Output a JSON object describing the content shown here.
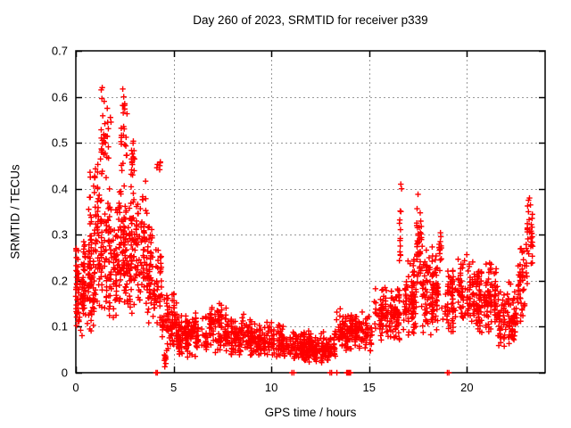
{
  "chart_data": {
    "type": "scatter",
    "title": "Day 260 of 2023, SRMTID for receiver p339",
    "xlabel": "GPS time / hours",
    "ylabel": "SRMTID / TECUs",
    "xlim": [
      0,
      24
    ],
    "ylim": [
      0,
      0.7
    ],
    "xticks": {
      "values": [
        0,
        5,
        10,
        15,
        20
      ],
      "labels": [
        "0",
        "5",
        "10",
        "15",
        "20"
      ]
    },
    "yticks": {
      "values": [
        0,
        0.1,
        0.2,
        0.3,
        0.4,
        0.5,
        0.6,
        0.7
      ],
      "labels": [
        "0",
        "0.1",
        "0.2",
        "0.3",
        "0.4",
        "0.5",
        "0.6",
        "0.7"
      ]
    },
    "grid": true,
    "grid_style": "dashed",
    "grid_color": "#999999",
    "legend_position": "none",
    "marker": {
      "shape": "plus",
      "color": "#ff0000",
      "size": 7
    },
    "border_color": "#000000",
    "background": "#ffffff",
    "point_clusters": [
      {
        "x0": 0.0,
        "x1": 0.12,
        "n": 30,
        "y0": 0.08,
        "y1": 0.3,
        "mode": 0.5
      },
      {
        "x0": 0.1,
        "x1": 1.0,
        "n": 110,
        "y0": 0.075,
        "y1": 0.3,
        "mode": 0.4
      },
      {
        "x0": 0.6,
        "x1": 1.3,
        "n": 50,
        "y0": 0.1,
        "y1": 0.4,
        "mode": 0.45
      },
      {
        "x0": 0.7,
        "x1": 1.3,
        "n": 35,
        "y0": 0.25,
        "y1": 0.48,
        "mode": 0.4
      },
      {
        "x0": 1.25,
        "x1": 1.55,
        "n": 22,
        "y0": 0.33,
        "y1": 0.62,
        "mode": 0.5
      },
      {
        "x0": 1.3,
        "x1": 2.3,
        "n": 130,
        "y0": 0.1,
        "y1": 0.42,
        "mode": 0.45
      },
      {
        "x0": 1.6,
        "x1": 1.8,
        "n": 10,
        "y0": 0.45,
        "y1": 0.6,
        "mode": 0.5
      },
      {
        "x0": 2.3,
        "x1": 2.6,
        "n": 22,
        "y0": 0.4,
        "y1": 0.62,
        "mode": 0.45
      },
      {
        "x0": 2.2,
        "x1": 3.2,
        "n": 150,
        "y0": 0.12,
        "y1": 0.42,
        "mode": 0.55
      },
      {
        "x0": 2.8,
        "x1": 3.05,
        "n": 16,
        "y0": 0.4,
        "y1": 0.52,
        "mode": 0.4
      },
      {
        "x0": 3.2,
        "x1": 4.0,
        "n": 90,
        "y0": 0.1,
        "y1": 0.35,
        "mode": 0.45
      },
      {
        "x0": 3.3,
        "x1": 3.65,
        "n": 10,
        "y0": 0.3,
        "y1": 0.46,
        "mode": 0.5
      },
      {
        "x0": 4.0,
        "x1": 4.4,
        "n": 40,
        "y0": 0.08,
        "y1": 0.3,
        "mode": 0.35
      },
      {
        "x0": 4.15,
        "x1": 4.35,
        "n": 6,
        "y0": 0.43,
        "y1": 0.47,
        "mode": 0.5
      },
      {
        "x0": 4.4,
        "x1": 5.2,
        "n": 90,
        "y0": 0.05,
        "y1": 0.18,
        "mode": 0.4
      },
      {
        "x0": 4.45,
        "x1": 4.75,
        "n": 8,
        "y0": 0.015,
        "y1": 0.06,
        "mode": 0.5
      },
      {
        "x0": 5.2,
        "x1": 9.0,
        "n": 330,
        "y0": 0.03,
        "y1": 0.135,
        "mode": 0.45
      },
      {
        "x0": 6.8,
        "x1": 7.7,
        "n": 40,
        "y0": 0.09,
        "y1": 0.155,
        "mode": 0.4
      },
      {
        "x0": 9.0,
        "x1": 10.6,
        "n": 140,
        "y0": 0.03,
        "y1": 0.12,
        "mode": 0.4
      },
      {
        "x0": 10.6,
        "x1": 13.3,
        "n": 230,
        "y0": 0.02,
        "y1": 0.095,
        "mode": 0.45
      },
      {
        "x0": 12.0,
        "x1": 13.0,
        "n": 40,
        "y0": 0.025,
        "y1": 0.07,
        "mode": 0.5
      },
      {
        "x0": 13.3,
        "x1": 15.2,
        "n": 170,
        "y0": 0.045,
        "y1": 0.14,
        "mode": 0.5
      },
      {
        "x0": 15.2,
        "x1": 16.55,
        "n": 130,
        "y0": 0.06,
        "y1": 0.19,
        "mode": 0.5
      },
      {
        "x0": 16.55,
        "x1": 16.75,
        "n": 12,
        "y0": 0.2,
        "y1": 0.41,
        "mode": 0.35
      },
      {
        "x0": 16.75,
        "x1": 17.4,
        "n": 90,
        "y0": 0.08,
        "y1": 0.25,
        "mode": 0.45
      },
      {
        "x0": 17.4,
        "x1": 17.7,
        "n": 40,
        "y0": 0.15,
        "y1": 0.39,
        "mode": 0.45
      },
      {
        "x0": 17.7,
        "x1": 18.4,
        "n": 90,
        "y0": 0.08,
        "y1": 0.3,
        "mode": 0.4
      },
      {
        "x0": 18.55,
        "x1": 18.75,
        "n": 14,
        "y0": 0.22,
        "y1": 0.32,
        "mode": 0.5
      },
      {
        "x0": 18.4,
        "x1": 19.5,
        "n": 90,
        "y0": 0.08,
        "y1": 0.26,
        "mode": 0.4
      },
      {
        "x0": 19.5,
        "x1": 20.4,
        "n": 90,
        "y0": 0.09,
        "y1": 0.27,
        "mode": 0.4
      },
      {
        "x0": 20.4,
        "x1": 21.6,
        "n": 140,
        "y0": 0.08,
        "y1": 0.25,
        "mode": 0.4
      },
      {
        "x0": 21.6,
        "x1": 22.6,
        "n": 110,
        "y0": 0.05,
        "y1": 0.2,
        "mode": 0.45
      },
      {
        "x0": 22.6,
        "x1": 23.1,
        "n": 50,
        "y0": 0.1,
        "y1": 0.3,
        "mode": 0.5
      },
      {
        "x0": 23.05,
        "x1": 23.35,
        "n": 30,
        "y0": 0.2,
        "y1": 0.385,
        "mode": 0.55
      }
    ],
    "highlight_points": [
      [
        0.02,
        0.27
      ],
      [
        1.3,
        0.615
      ],
      [
        1.35,
        0.62
      ],
      [
        1.45,
        0.59
      ],
      [
        2.4,
        0.617
      ],
      [
        2.45,
        0.6
      ],
      [
        2.5,
        0.585
      ],
      [
        16.62,
        0.41
      ],
      [
        16.66,
        0.4
      ],
      [
        17.5,
        0.388
      ],
      [
        23.15,
        0.375
      ],
      [
        23.2,
        0.38
      ],
      [
        23.25,
        0.365
      ],
      [
        4.55,
        0.013
      ],
      [
        4.6,
        0.02
      ]
    ],
    "zero_points": [
      [
        4.1,
        0
      ],
      [
        4.17,
        0
      ],
      [
        11.05,
        0
      ],
      [
        11.15,
        0
      ],
      [
        13.0,
        0
      ],
      [
        13.08,
        0
      ],
      [
        13.35,
        0
      ],
      [
        13.85,
        0
      ],
      [
        13.9,
        0
      ],
      [
        13.95,
        0
      ],
      [
        14.0,
        0
      ],
      [
        14.05,
        0
      ],
      [
        19.0,
        0
      ],
      [
        19.08,
        0
      ]
    ]
  }
}
